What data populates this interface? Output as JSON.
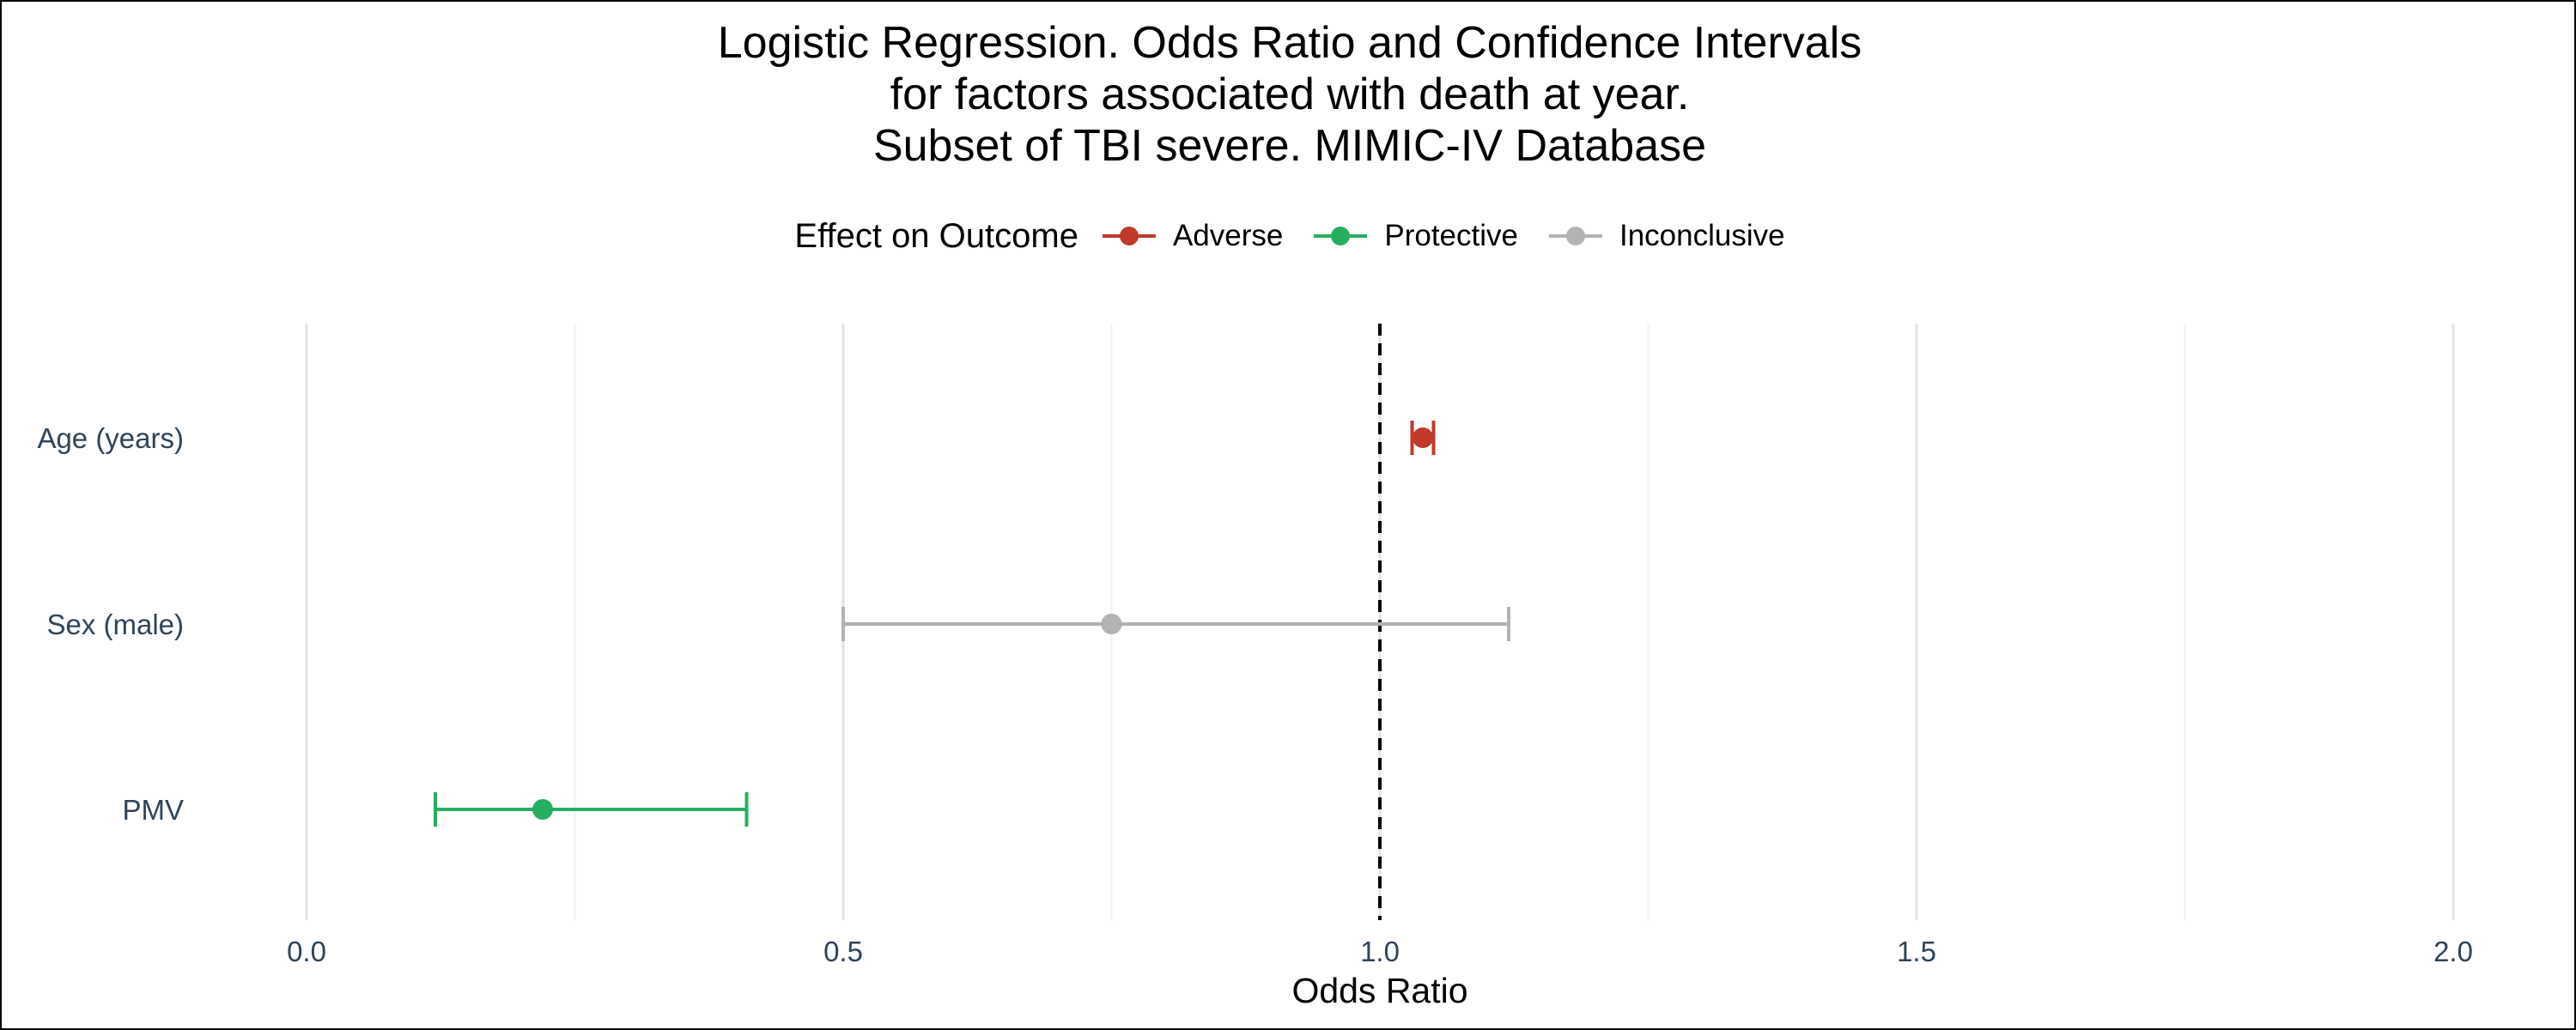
{
  "chart_data": {
    "type": "forest",
    "title_lines": [
      "Logistic Regression. Odds Ratio and Confidence Intervals",
      "for factors associated with death at year.",
      "Subset of TBI severe. MIMIC-IV Database"
    ],
    "xlabel": "Odds Ratio",
    "ylabel": "",
    "xlim": [
      -0.1,
      2.1
    ],
    "x_ticks": [
      0.0,
      0.5,
      1.0,
      1.5,
      2.0
    ],
    "x_tick_labels": [
      "0.0",
      "0.5",
      "1.0",
      "1.5",
      "2.0"
    ],
    "minor_gridlines": [
      0.25,
      0.75,
      1.25,
      1.75
    ],
    "reference_line": 1.0,
    "grid": true,
    "legend": {
      "title": "Effect on Outcome",
      "placement": "top",
      "entries": [
        {
          "label": "Adverse",
          "color": "#c0392b"
        },
        {
          "label": "Protective",
          "color": "#27ae60"
        },
        {
          "label": "Inconclusive",
          "color": "#b3b3b3"
        }
      ]
    },
    "factors": [
      {
        "label": "Age (years)",
        "or": 1.04,
        "ci_low": 1.03,
        "ci_high": 1.05,
        "effect": "Adverse",
        "color": "#c0392b"
      },
      {
        "label": "Sex (male)",
        "or": 0.75,
        "ci_low": 0.5,
        "ci_high": 1.12,
        "effect": "Inconclusive",
        "color": "#b3b3b3"
      },
      {
        "label": "PMV",
        "or": 0.22,
        "ci_low": 0.12,
        "ci_high": 0.41,
        "effect": "Protective",
        "color": "#27ae60"
      }
    ]
  }
}
